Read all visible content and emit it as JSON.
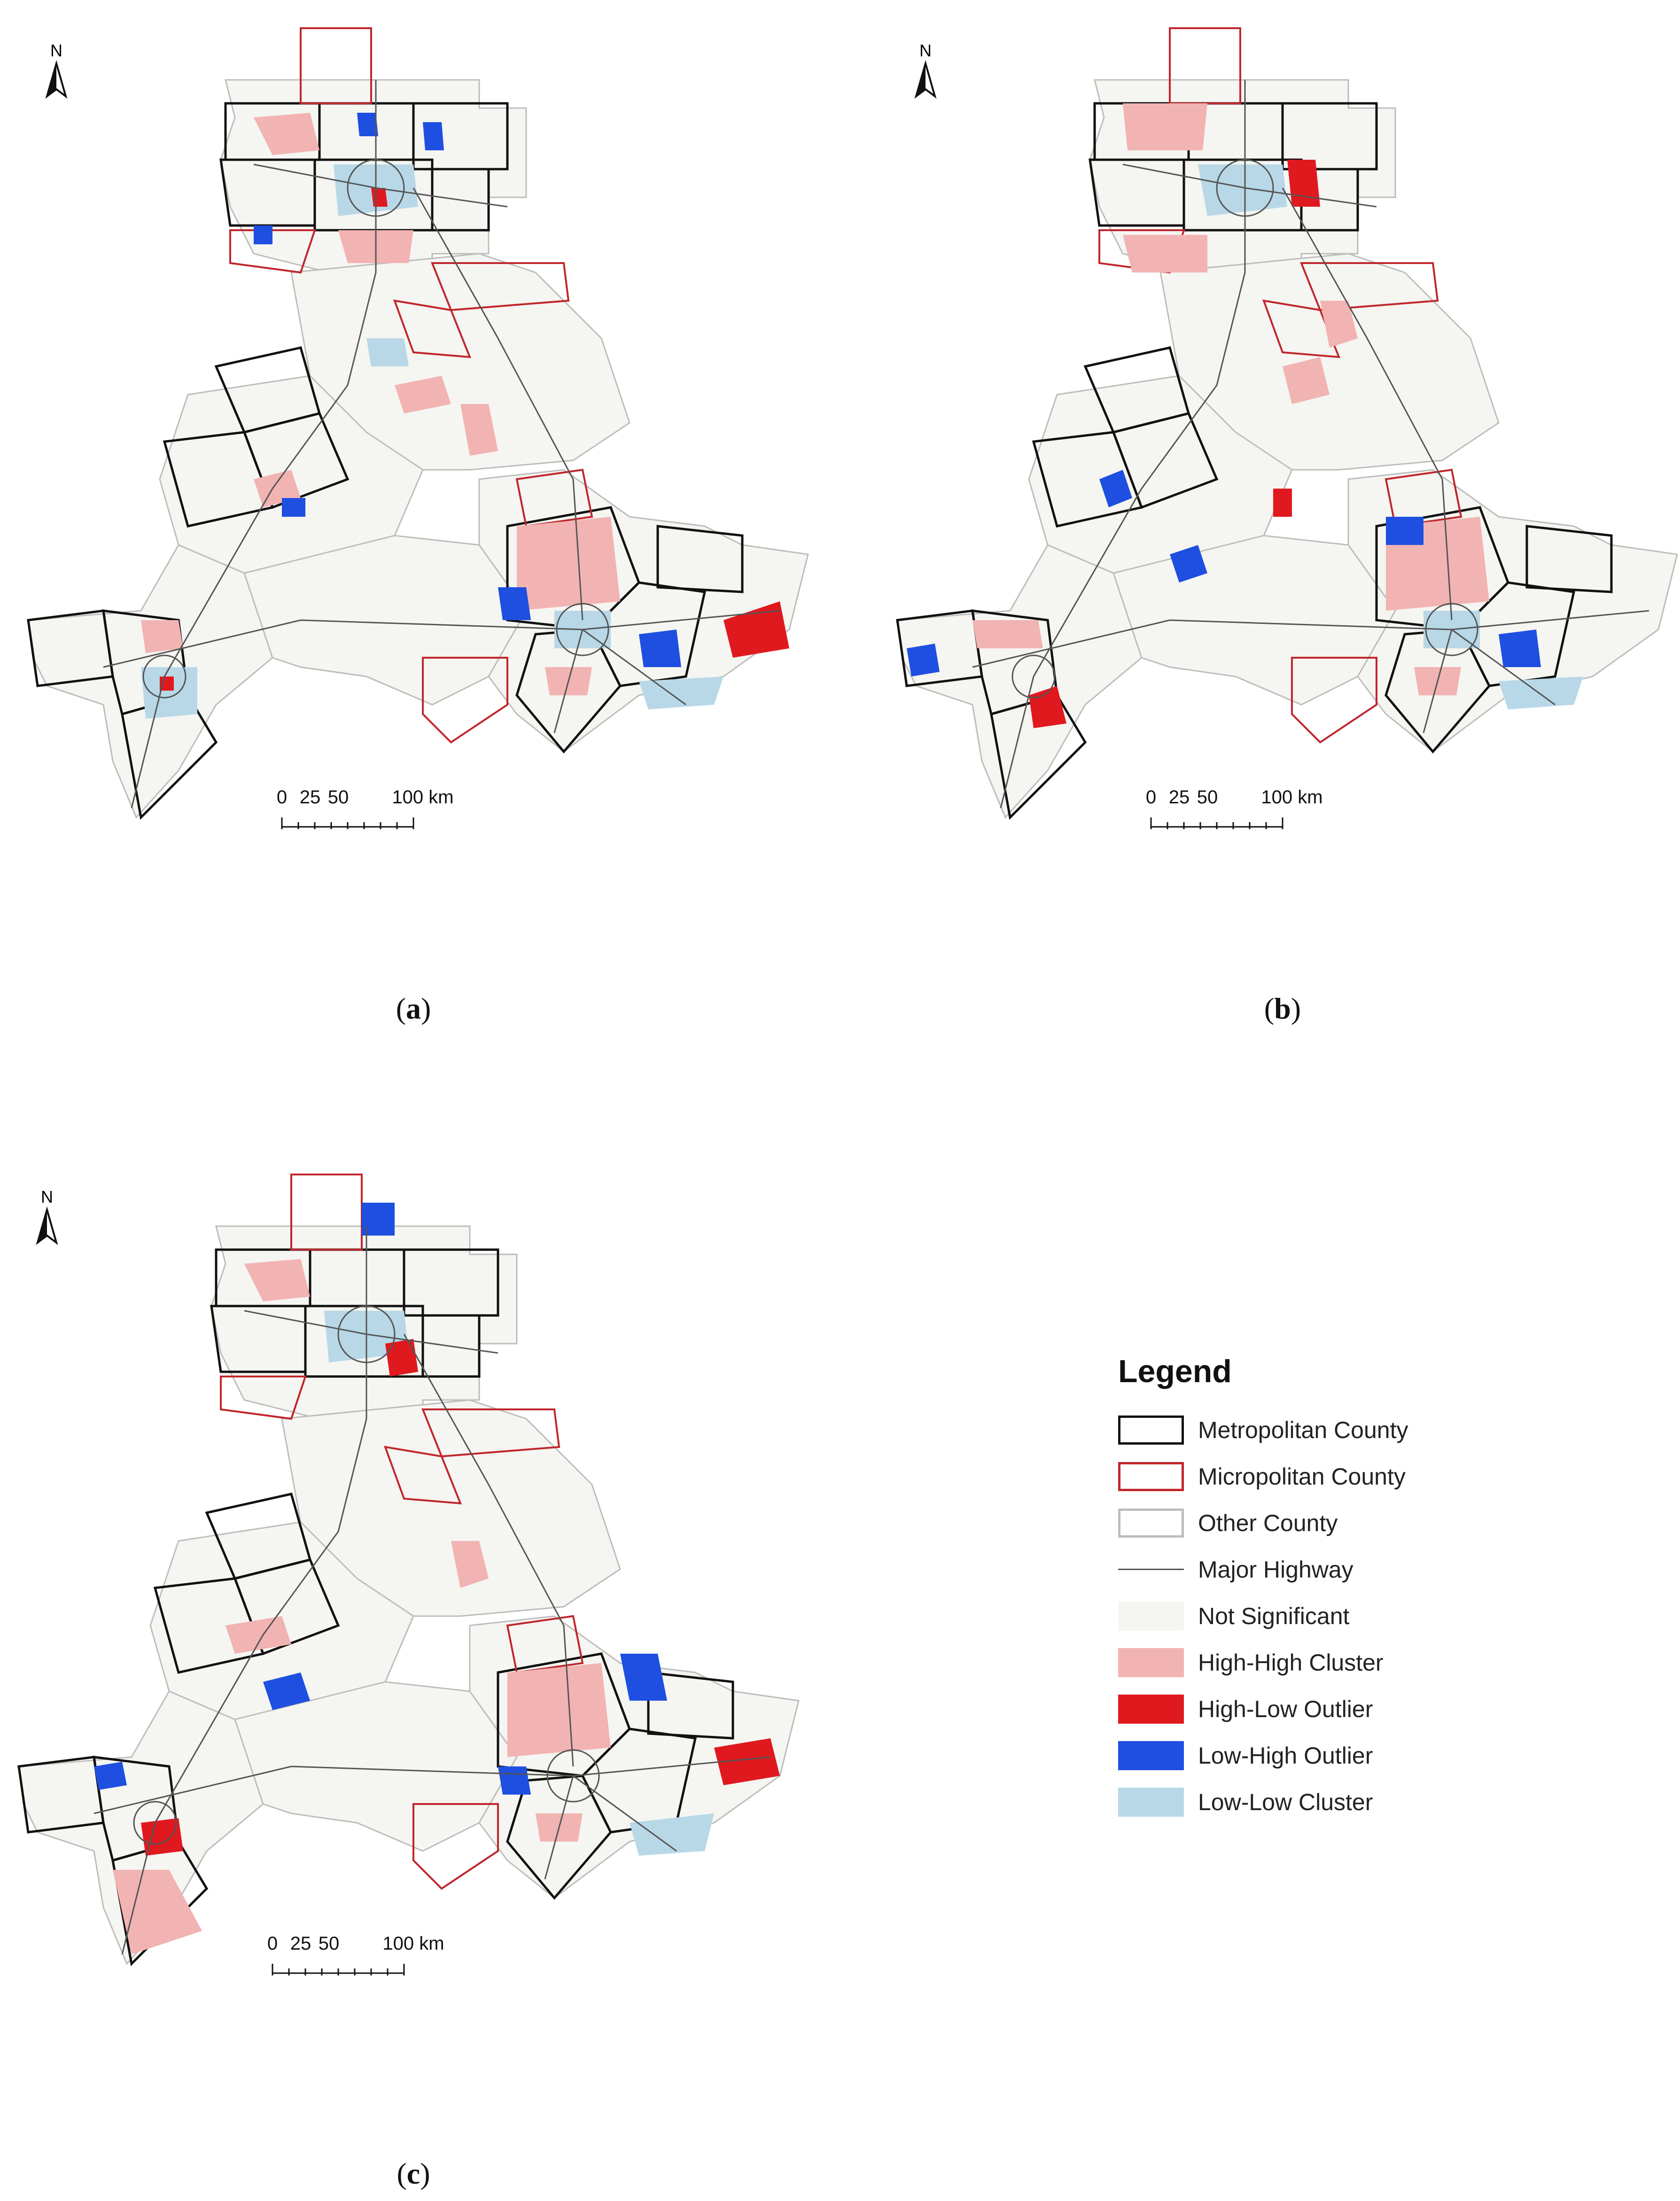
{
  "panels": [
    {
      "id": "a",
      "label_open": "(",
      "label_letter": "a",
      "label_close": ")"
    },
    {
      "id": "b",
      "label_open": "(",
      "label_letter": "b",
      "label_close": ")"
    },
    {
      "id": "c",
      "label_open": "(",
      "label_letter": "c",
      "label_close": ")"
    }
  ],
  "north_arrow": "N",
  "scale_bar": {
    "ticks": [
      "0",
      "25",
      "50",
      "100 km"
    ]
  },
  "legend": {
    "title": "Legend",
    "items": [
      {
        "label": "Metropolitan County",
        "type": "outline",
        "color": "#111111"
      },
      {
        "label": "Micropolitan County",
        "type": "outline",
        "color": "#c0262c"
      },
      {
        "label": "Other County",
        "type": "outline",
        "color": "#bdbdbd"
      },
      {
        "label": "Major Highway",
        "type": "line",
        "color": "#555555"
      },
      {
        "label": "Not Significant",
        "type": "fill",
        "color": "#f5f5f1"
      },
      {
        "label": "High-High Cluster",
        "type": "fill",
        "color": "#f2b3b3"
      },
      {
        "label": "High-Low Outlier",
        "type": "fill",
        "color": "#e0191f"
      },
      {
        "label": "Low-High Outlier",
        "type": "fill",
        "color": "#1e4fe0"
      },
      {
        "label": "Low-Low Cluster",
        "type": "fill",
        "color": "#b8d8e8"
      }
    ]
  }
}
